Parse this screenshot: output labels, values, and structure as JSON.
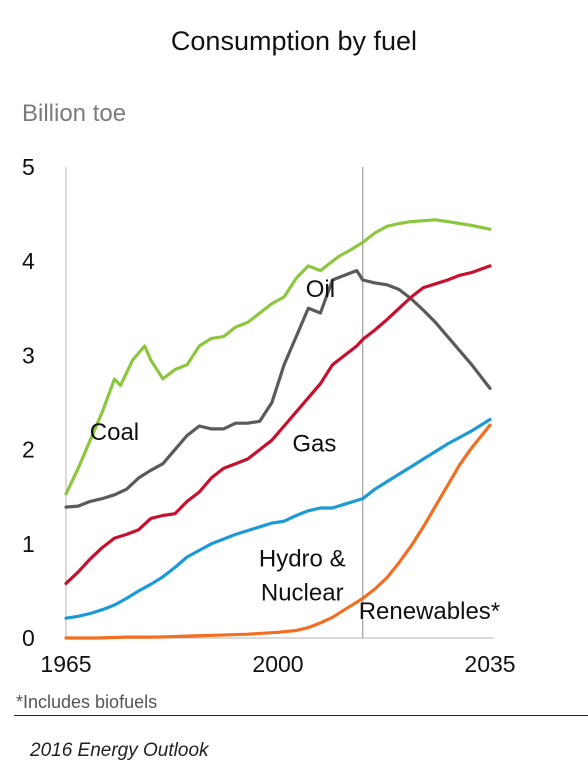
{
  "chart_data": {
    "type": "line",
    "title": "Consumption by fuel",
    "ylabel": "Billion toe",
    "xlabel": "",
    "xlim": [
      1965,
      2035
    ],
    "ylim": [
      0,
      5
    ],
    "yticks": [
      "0",
      "1",
      "2",
      "3",
      "4",
      "5"
    ],
    "xticks": [
      "1965",
      "2000",
      "2035"
    ],
    "xtick_values": [
      1965,
      2000,
      2035
    ],
    "divider_year": 2014,
    "grid": false,
    "series": [
      {
        "name": "Oil",
        "color": "#8dc63f",
        "x": [
          1965,
          1967,
          1969,
          1971,
          1973,
          1974,
          1976,
          1978,
          1979,
          1981,
          1983,
          1985,
          1987,
          1989,
          1991,
          1993,
          1995,
          1997,
          1999,
          2001,
          2003,
          2005,
          2007,
          2008,
          2010,
          2012,
          2014,
          2016,
          2018,
          2020,
          2022,
          2024,
          2026,
          2028,
          2030,
          2032,
          2035
        ],
        "y": [
          1.53,
          1.8,
          2.1,
          2.4,
          2.75,
          2.68,
          2.95,
          3.1,
          2.95,
          2.75,
          2.85,
          2.9,
          3.1,
          3.18,
          3.2,
          3.3,
          3.35,
          3.45,
          3.55,
          3.62,
          3.82,
          3.95,
          3.9,
          3.95,
          4.05,
          4.12,
          4.2,
          4.3,
          4.37,
          4.4,
          4.42,
          4.43,
          4.44,
          4.42,
          4.4,
          4.38,
          4.34
        ]
      },
      {
        "name": "Coal",
        "color": "#5a5a5a",
        "x": [
          1965,
          1967,
          1969,
          1971,
          1973,
          1975,
          1977,
          1979,
          1981,
          1983,
          1985,
          1987,
          1989,
          1991,
          1993,
          1995,
          1997,
          1999,
          2001,
          2003,
          2005,
          2007,
          2009,
          2011,
          2013,
          2014,
          2016,
          2018,
          2020,
          2022,
          2024,
          2026,
          2028,
          2030,
          2032,
          2035
        ],
        "y": [
          1.39,
          1.4,
          1.45,
          1.48,
          1.52,
          1.58,
          1.7,
          1.78,
          1.85,
          2.0,
          2.15,
          2.25,
          2.22,
          2.22,
          2.28,
          2.28,
          2.3,
          2.5,
          2.9,
          3.2,
          3.5,
          3.45,
          3.8,
          3.85,
          3.9,
          3.8,
          3.77,
          3.75,
          3.7,
          3.6,
          3.48,
          3.35,
          3.2,
          3.05,
          2.9,
          2.65
        ]
      },
      {
        "name": "Gas",
        "color": "#c8102e",
        "x": [
          1965,
          1967,
          1969,
          1971,
          1973,
          1975,
          1977,
          1979,
          1981,
          1983,
          1985,
          1987,
          1989,
          1991,
          1993,
          1995,
          1997,
          1999,
          2001,
          2003,
          2005,
          2007,
          2009,
          2011,
          2013,
          2014,
          2016,
          2018,
          2020,
          2022,
          2024,
          2026,
          2028,
          2030,
          2032,
          2035
        ],
        "y": [
          0.58,
          0.7,
          0.84,
          0.96,
          1.06,
          1.1,
          1.15,
          1.27,
          1.3,
          1.32,
          1.45,
          1.55,
          1.7,
          1.8,
          1.85,
          1.9,
          2.0,
          2.1,
          2.25,
          2.4,
          2.55,
          2.7,
          2.9,
          3.0,
          3.1,
          3.17,
          3.27,
          3.38,
          3.5,
          3.62,
          3.72,
          3.76,
          3.8,
          3.85,
          3.88,
          3.95
        ]
      },
      {
        "name": "Hydro & Nuclear",
        "color": "#1b9ad6",
        "x": [
          1965,
          1967,
          1969,
          1971,
          1973,
          1975,
          1977,
          1979,
          1981,
          1983,
          1985,
          1987,
          1989,
          1991,
          1993,
          1995,
          1997,
          1999,
          2001,
          2003,
          2005,
          2007,
          2009,
          2011,
          2013,
          2014,
          2016,
          2018,
          2020,
          2022,
          2024,
          2026,
          2028,
          2030,
          2032,
          2035
        ],
        "y": [
          0.21,
          0.23,
          0.26,
          0.3,
          0.35,
          0.42,
          0.5,
          0.57,
          0.65,
          0.75,
          0.86,
          0.93,
          1.0,
          1.05,
          1.1,
          1.14,
          1.18,
          1.22,
          1.24,
          1.3,
          1.35,
          1.38,
          1.38,
          1.42,
          1.46,
          1.48,
          1.58,
          1.66,
          1.74,
          1.82,
          1.9,
          1.98,
          2.06,
          2.13,
          2.2,
          2.32
        ]
      },
      {
        "name": "Renewables*",
        "color": "#f26f21",
        "x": [
          1965,
          1970,
          1975,
          1980,
          1985,
          1990,
          1995,
          2000,
          2003,
          2005,
          2007,
          2009,
          2011,
          2013,
          2014,
          2016,
          2018,
          2020,
          2022,
          2024,
          2026,
          2028,
          2030,
          2032,
          2035
        ],
        "y": [
          0.0,
          0.0,
          0.01,
          0.01,
          0.02,
          0.03,
          0.04,
          0.06,
          0.08,
          0.11,
          0.16,
          0.22,
          0.3,
          0.38,
          0.42,
          0.52,
          0.64,
          0.8,
          0.98,
          1.18,
          1.4,
          1.62,
          1.84,
          2.02,
          2.26
        ]
      }
    ],
    "labels": [
      {
        "text": "Oil",
        "series": "Oil",
        "x": 2007,
        "y": 3.62
      },
      {
        "text": "Coal",
        "series": "Coal",
        "x": 1973,
        "y": 2.1
      },
      {
        "text": "Gas",
        "series": "Gas",
        "x": 2006,
        "y": 1.98
      },
      {
        "text": "Hydro &",
        "series": "Hydro & Nuclear",
        "x": 2004,
        "y": 0.76
      },
      {
        "text": "Nuclear",
        "series": "Hydro & Nuclear",
        "x": 2004,
        "y": 0.4
      },
      {
        "text": "Renewables*",
        "series": "Renewables*",
        "x": 2025,
        "y": 0.2
      }
    ]
  },
  "footnote": "*Includes biofuels",
  "source": "2016 Energy Outlook"
}
